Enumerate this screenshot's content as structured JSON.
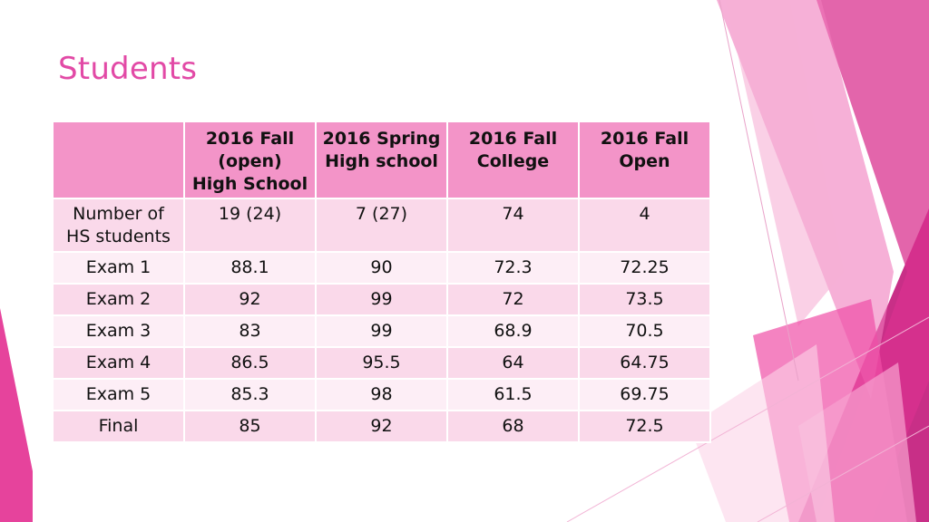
{
  "slide": {
    "title": "Students"
  },
  "theme": {
    "accent": "#e24aa6",
    "header_fill": "#f394c8",
    "row_fill_a": "#fad9ea",
    "row_fill_b": "#fdeef6",
    "deco_magenta": "#c2187a",
    "deco_pink": "#ef5eaf"
  },
  "table": {
    "headers": [
      "",
      "2016 Fall (open) High School",
      "2016 Spring High school",
      "2016 Fall College",
      "2016 Fall Open"
    ],
    "header_lines": [
      [
        ""
      ],
      [
        "2016 Fall",
        "(open)",
        "High School"
      ],
      [
        "2016 Spring",
        "High school"
      ],
      [
        "2016 Fall",
        "College"
      ],
      [
        "2016 Fall",
        "Open"
      ]
    ],
    "rows": [
      {
        "label_lines": [
          "Number of",
          "HS students"
        ],
        "label": "Number of HS students",
        "cells": [
          "19 (24)",
          "7 (27)",
          "74",
          "4"
        ]
      },
      {
        "label": "Exam 1",
        "cells": [
          "88.1",
          "90",
          "72.3",
          "72.25"
        ]
      },
      {
        "label": "Exam 2",
        "cells": [
          "92",
          "99",
          "72",
          "73.5"
        ]
      },
      {
        "label": "Exam 3",
        "cells": [
          "83",
          "99",
          "68.9",
          "70.5"
        ]
      },
      {
        "label": "Exam 4",
        "cells": [
          "86.5",
          "95.5",
          "64",
          "64.75"
        ]
      },
      {
        "label": "Exam 5",
        "cells": [
          "85.3",
          "98",
          "61.5",
          "69.75"
        ]
      },
      {
        "label": "Final",
        "cells": [
          "85",
          "92",
          "68",
          "72.5"
        ]
      }
    ]
  }
}
